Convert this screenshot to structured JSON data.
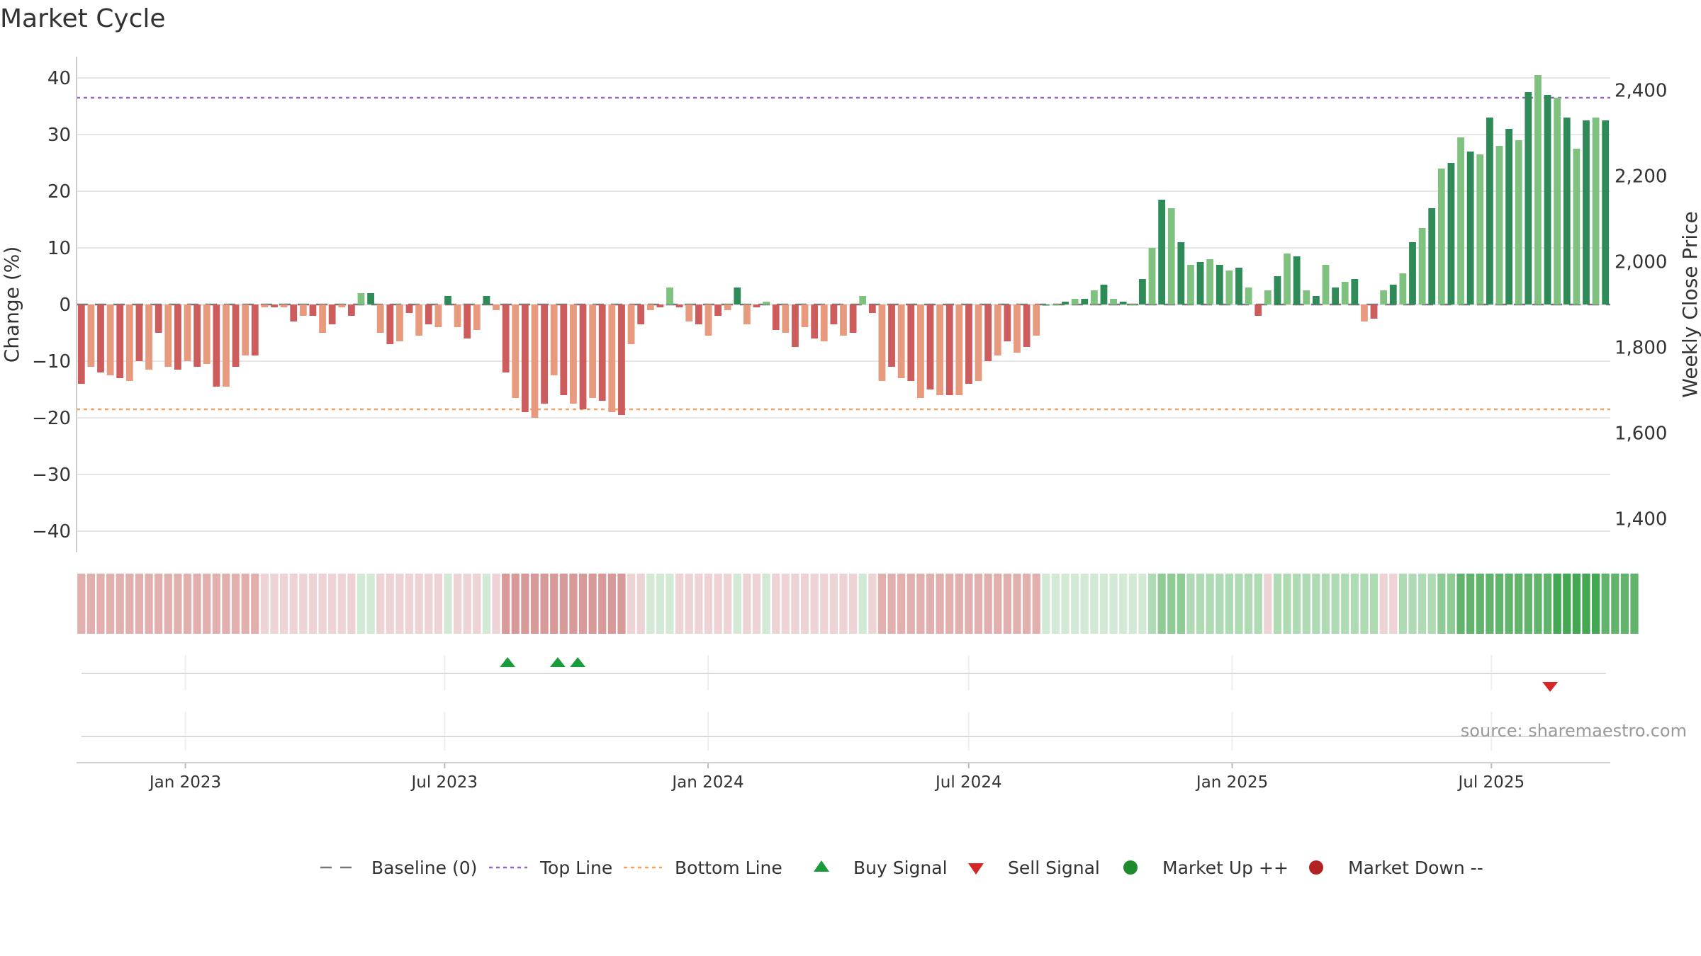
{
  "chart_data": {
    "type": "bar",
    "title": "Market Cycle",
    "ylabel": "Change (%)",
    "y2label": "Weekly Close Price",
    "ylim": [
      -43,
      44
    ],
    "y2lim": [
      1330,
      2440
    ],
    "yticks": [
      40,
      30,
      20,
      10,
      0,
      -10,
      -20,
      -30,
      -40
    ],
    "y2ticks": [
      2400,
      2200,
      2000,
      1800,
      1600,
      1400
    ],
    "x_start": "2022-10-17",
    "x_end": "2025-09-22",
    "week_step_days": 7,
    "xticks": [
      {
        "date": "2023-01-01",
        "label": "Jan 2023"
      },
      {
        "date": "2023-07-01",
        "label": "Jul 2023"
      },
      {
        "date": "2024-01-01",
        "label": "Jan 2024"
      },
      {
        "date": "2024-07-01",
        "label": "Jul 2024"
      },
      {
        "date": "2025-01-01",
        "label": "Jan 2025"
      },
      {
        "date": "2025-07-01",
        "label": "Jul 2025"
      }
    ],
    "top_line": 36.5,
    "bottom_line": -18.5,
    "baseline": 0,
    "values": [
      -14,
      -11,
      -12,
      -12.5,
      -13,
      -13.5,
      -10,
      -11.5,
      -5,
      -11,
      -11.5,
      -10,
      -11,
      -10.5,
      -14.5,
      -14.5,
      -11,
      -9,
      -9,
      -0.5,
      -0.5,
      -0.5,
      -3,
      -2,
      -2,
      -5,
      -3.5,
      -0.5,
      -2,
      2,
      2,
      -5,
      -7,
      -6.5,
      -1.5,
      -5.5,
      -3.5,
      -4,
      1.5,
      -4,
      -6,
      -4.5,
      1.5,
      -1,
      -12,
      -16.5,
      -19,
      -20,
      -17.5,
      -12.5,
      -16,
      -17.5,
      -18.5,
      -16.5,
      -17,
      -19,
      -19.5,
      -7,
      -3.5,
      -1,
      -0.5,
      3,
      -0.5,
      -3,
      -3.5,
      -5.5,
      -2,
      -1,
      3,
      -3.5,
      -0.5,
      0.5,
      -4.5,
      -5,
      -7.5,
      -4,
      -6,
      -6.5,
      -3.5,
      -5.5,
      -5,
      1.5,
      -1.5,
      -13.5,
      -11,
      -13,
      -13.5,
      -16.5,
      -15,
      -16,
      -16,
      -16,
      -14,
      -13.5,
      -10,
      -9,
      -6.5,
      -8.5,
      -7.5,
      -5.5,
      0,
      0,
      0.5,
      1,
      1,
      2.5,
      3.5,
      1,
      0.5,
      0,
      4.5,
      10,
      18.5,
      17,
      11,
      7,
      7.5,
      8,
      7,
      6,
      6.5,
      3,
      -2,
      2.5,
      5,
      9,
      8.5,
      2.5,
      1.5,
      7,
      3,
      4,
      4.5,
      -3,
      -2.5,
      2.5,
      3.5,
      5.5,
      11,
      13.5,
      17,
      24,
      25,
      29.5,
      27,
      26.5,
      33,
      28,
      31,
      29,
      37.5,
      40.5,
      37,
      36.5,
      33,
      27.5,
      32.5,
      33,
      32.5
    ],
    "heat_levels": [
      -3,
      -3,
      -3,
      -3,
      -3,
      -3,
      -3,
      -3,
      -3,
      -3,
      -3,
      -3,
      -3,
      -3,
      -3,
      -3,
      -3,
      -3,
      -3,
      -2,
      -2,
      -2,
      -2,
      -2,
      -2,
      -2,
      -2,
      -2,
      -2,
      1,
      1,
      -2,
      -2,
      -2,
      -2,
      -2,
      -2,
      -2,
      1,
      -2,
      -2,
      -2,
      1,
      -2,
      -4,
      -4,
      -4,
      -4,
      -4,
      -4,
      -4,
      -4,
      -4,
      -4,
      -4,
      -4,
      -4,
      -2,
      -2,
      1,
      1,
      1,
      -2,
      -2,
      -2,
      -2,
      -2,
      -2,
      1,
      -2,
      -2,
      1,
      -2,
      -2,
      -2,
      -2,
      -2,
      -2,
      -2,
      -2,
      -2,
      1,
      -2,
      -3,
      -3,
      -3,
      -3,
      -3,
      -3,
      -3,
      -3,
      -3,
      -3,
      -3,
      -3,
      -3,
      -3,
      -3,
      -3,
      -3,
      1,
      1,
      1,
      1,
      1,
      1,
      1,
      1,
      1,
      1,
      1,
      2,
      3,
      3,
      3,
      2,
      2,
      2,
      2,
      2,
      2,
      2,
      2,
      -2,
      2,
      2,
      2,
      2,
      2,
      2,
      2,
      2,
      2,
      2,
      2,
      -2,
      -2,
      2,
      2,
      2,
      2,
      3,
      3,
      4,
      4,
      4,
      4,
      4,
      4,
      4,
      4,
      4,
      4,
      5,
      5,
      5,
      5,
      5,
      4,
      4,
      4,
      4
    ],
    "buy_signals": [
      "2023-08-14",
      "2023-09-18",
      "2023-10-02"
    ],
    "sell_signals": [
      "2025-08-11"
    ],
    "market_up_signals": [],
    "market_down_signals": [],
    "source": "source: sharemaestro.com",
    "legend": [
      {
        "label": "Baseline (0)",
        "symbol": "dash",
        "color": "#777777"
      },
      {
        "label": "Top Line",
        "symbol": "dot",
        "color": "#9467bd"
      },
      {
        "label": "Bottom Line",
        "symbol": "dot",
        "color": "#f4a261"
      },
      {
        "label": "Buy Signal",
        "symbol": "triangle-up",
        "color": "#1a9c3c"
      },
      {
        "label": "Sell Signal",
        "symbol": "triangle-down",
        "color": "#d62728"
      },
      {
        "label": "Market Up ++",
        "symbol": "circle",
        "color": "#1e8c2c"
      },
      {
        "label": "Market Down --",
        "symbol": "circle",
        "color": "#b22222"
      }
    ],
    "colors": {
      "pos_dark": "#2e8a57",
      "pos_light": "#7fc17f",
      "neg_dark": "#cd5c5c",
      "neg_light": "#e79a7d",
      "top_line": "#9467bd",
      "bottom_line": "#f4a261",
      "grid": "#e6e6e6",
      "axis": "#cccccc"
    }
  }
}
